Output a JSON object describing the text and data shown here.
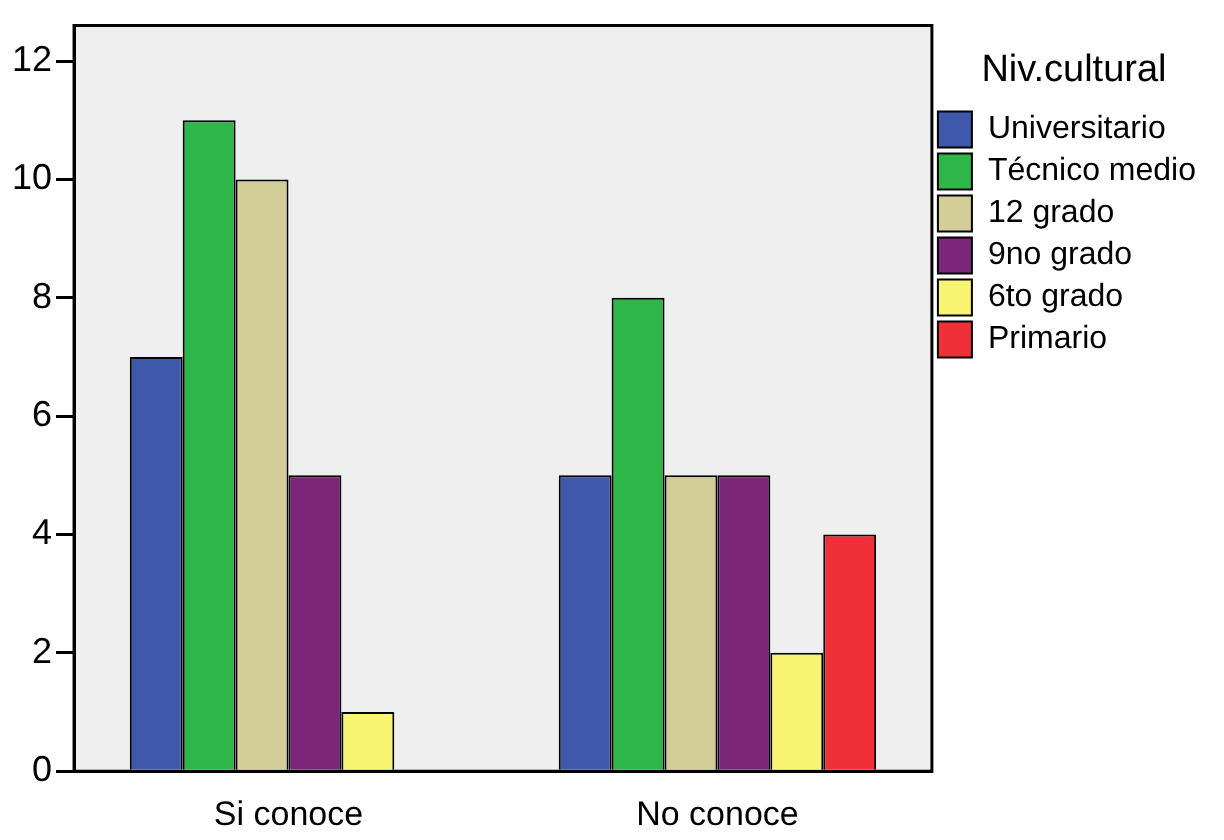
{
  "chart_data": {
    "type": "bar",
    "categories": [
      "Si conoce",
      "No conoce"
    ],
    "series": [
      {
        "name": "Universitario",
        "color": "#3f58ab",
        "values": [
          7,
          5
        ]
      },
      {
        "name": "Técnico medio",
        "color": "#2eb648",
        "values": [
          11,
          8
        ]
      },
      {
        "name": "12 grado",
        "color": "#d3ce98",
        "values": [
          10,
          5
        ]
      },
      {
        "name": "9no grado",
        "color": "#7b2679",
        "values": [
          5,
          5
        ]
      },
      {
        "name": "6to grado",
        "color": "#f9f471",
        "values": [
          1,
          2
        ]
      },
      {
        "name": "Primario",
        "color": "#ef3038",
        "values": [
          null,
          4
        ]
      }
    ],
    "legend_title": "Niv.cultural",
    "legend": "right",
    "ylim": [
      0,
      12.6
    ],
    "yticks": [
      0,
      2,
      4,
      6,
      8,
      10,
      12
    ],
    "grid": false
  }
}
